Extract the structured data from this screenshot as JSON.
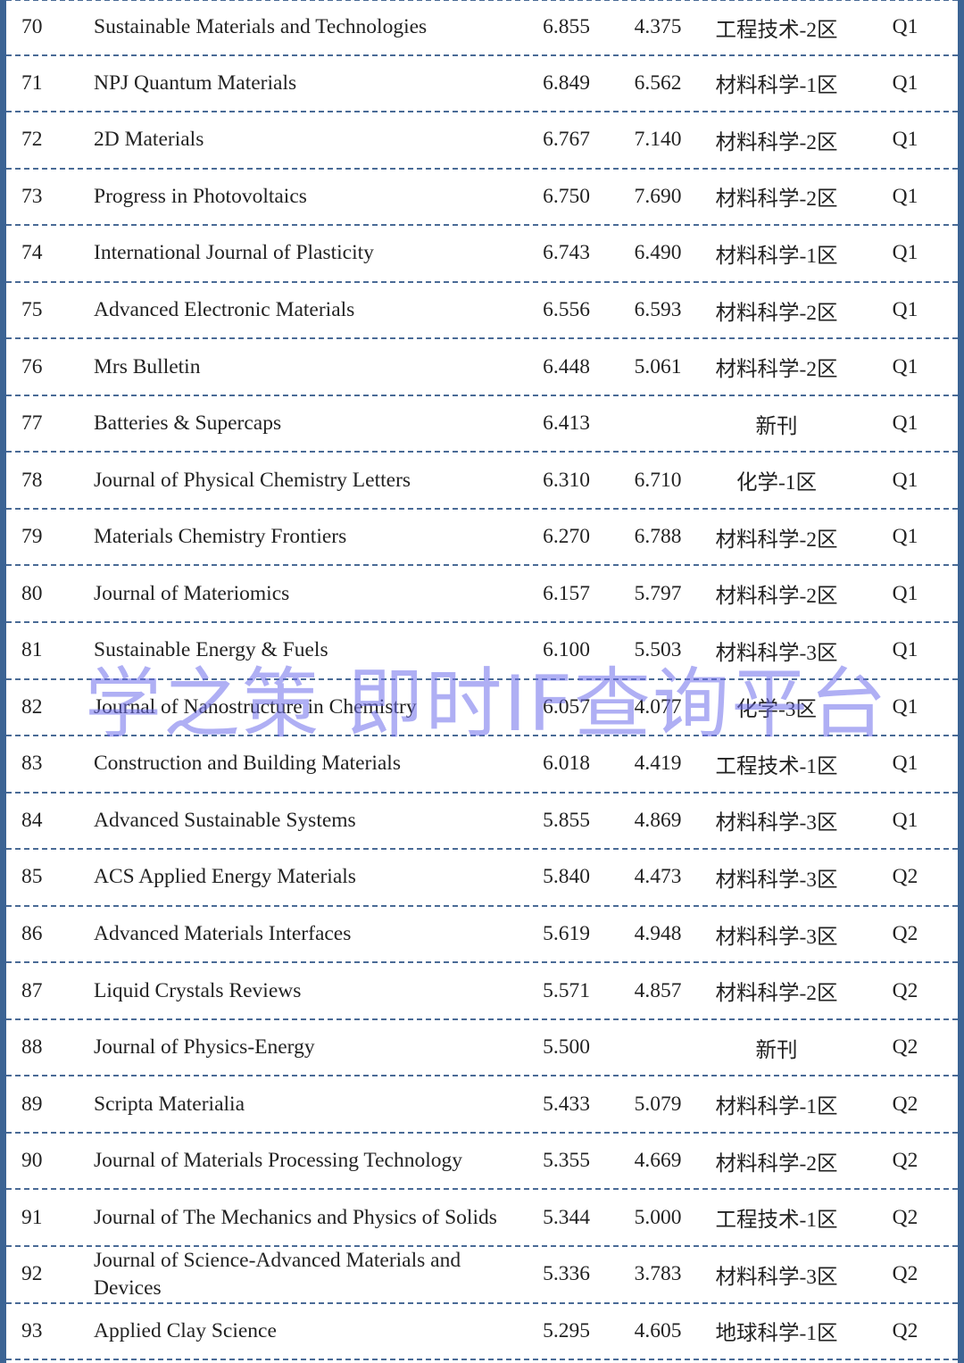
{
  "rows": [
    {
      "rank": "70",
      "name": "Sustainable Materials and Technologies",
      "if": "6.855",
      "if5": "4.375",
      "zone": "工程技术-2区",
      "q": "Q1"
    },
    {
      "rank": "71",
      "name": "NPJ Quantum Materials",
      "if": "6.849",
      "if5": "6.562",
      "zone": "材料科学-1区",
      "q": "Q1"
    },
    {
      "rank": "72",
      "name": "2D Materials",
      "if": "6.767",
      "if5": "7.140",
      "zone": "材料科学-2区",
      "q": "Q1"
    },
    {
      "rank": "73",
      "name": "Progress in Photovoltaics",
      "if": "6.750",
      "if5": "7.690",
      "zone": "材料科学-2区",
      "q": "Q1"
    },
    {
      "rank": "74",
      "name": "International Journal of Plasticity",
      "if": "6.743",
      "if5": "6.490",
      "zone": "材料科学-1区",
      "q": "Q1"
    },
    {
      "rank": "75",
      "name": "Advanced Electronic Materials",
      "if": "6.556",
      "if5": "6.593",
      "zone": "材料科学-2区",
      "q": "Q1"
    },
    {
      "rank": "76",
      "name": "Mrs Bulletin",
      "if": "6.448",
      "if5": "5.061",
      "zone": "材料科学-2区",
      "q": "Q1"
    },
    {
      "rank": "77",
      "name": "Batteries & Supercaps",
      "if": "6.413",
      "if5": "",
      "zone": "新刊",
      "q": "Q1"
    },
    {
      "rank": "78",
      "name": "Journal of Physical Chemistry Letters",
      "if": "6.310",
      "if5": "6.710",
      "zone": "化学-1区",
      "q": "Q1"
    },
    {
      "rank": "79",
      "name": "Materials Chemistry Frontiers",
      "if": "6.270",
      "if5": "6.788",
      "zone": "材料科学-2区",
      "q": "Q1"
    },
    {
      "rank": "80",
      "name": "Journal of Materiomics",
      "if": "6.157",
      "if5": "5.797",
      "zone": "材料科学-2区",
      "q": "Q1"
    },
    {
      "rank": "81",
      "name": "Sustainable Energy & Fuels",
      "if": "6.100",
      "if5": "5.503",
      "zone": "材料科学-3区",
      "q": "Q1"
    },
    {
      "rank": "82",
      "name": "Journal of Nanostructure in Chemistry",
      "if": "6.057",
      "if5": "4.077",
      "zone": "化学-3区",
      "q": "Q1"
    },
    {
      "rank": "83",
      "name": "Construction and Building Materials",
      "if": "6.018",
      "if5": "4.419",
      "zone": "工程技术-1区",
      "q": "Q1"
    },
    {
      "rank": "84",
      "name": "Advanced Sustainable Systems",
      "if": "5.855",
      "if5": "4.869",
      "zone": "材料科学-3区",
      "q": "Q1"
    },
    {
      "rank": "85",
      "name": "ACS Applied Energy Materials",
      "if": "5.840",
      "if5": "4.473",
      "zone": "材料科学-3区",
      "q": "Q2"
    },
    {
      "rank": "86",
      "name": "Advanced Materials Interfaces",
      "if": "5.619",
      "if5": "4.948",
      "zone": "材料科学-3区",
      "q": "Q2"
    },
    {
      "rank": "87",
      "name": "Liquid Crystals Reviews",
      "if": "5.571",
      "if5": "4.857",
      "zone": "材料科学-2区",
      "q": "Q2"
    },
    {
      "rank": "88",
      "name": "Journal of Physics-Energy",
      "if": "5.500",
      "if5": "",
      "zone": "新刊",
      "q": "Q2"
    },
    {
      "rank": "89",
      "name": "Scripta Materialia",
      "if": "5.433",
      "if5": "5.079",
      "zone": "材料科学-1区",
      "q": "Q2"
    },
    {
      "rank": "90",
      "name": "Journal of Materials Processing Technology",
      "if": "5.355",
      "if5": "4.669",
      "zone": "材料科学-2区",
      "q": "Q2"
    },
    {
      "rank": "91",
      "name": "Journal of The Mechanics and Physics of Solids",
      "if": "5.344",
      "if5": "5.000",
      "zone": "工程技术-1区",
      "q": "Q2"
    },
    {
      "rank": "92",
      "name": "Journal of Science-Advanced Materials and Devices",
      "if": "5.336",
      "if5": "3.783",
      "zone": "材料科学-3区",
      "q": "Q2"
    },
    {
      "rank": "93",
      "name": "Applied Clay Science",
      "if": "5.295",
      "if5": "4.605",
      "zone": "地球科学-1区",
      "q": "Q2"
    }
  ],
  "watermark": "学之策 即时IF查询平台",
  "colors": {
    "border": "#3c6494",
    "watermark": "#8c8cf0"
  }
}
